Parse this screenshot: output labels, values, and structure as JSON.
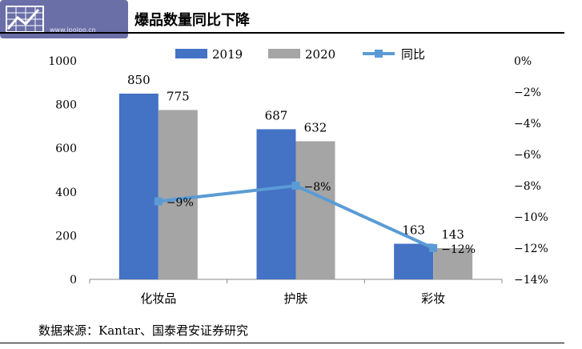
{
  "header": {
    "watermark_text": "",
    "watermark_url": "www.ipoipo.cn",
    "title": "爆品数量同比下降"
  },
  "footer": {
    "source": "数据来源：Kantar、国泰君安证券研究"
  },
  "colors": {
    "series_2019": "#4472c4",
    "series_2020": "#a5a5a5",
    "series_yoy": "#5b9bd5"
  },
  "chart_data": {
    "type": "bar",
    "categories": [
      "化妆品",
      "护肤",
      "彩妆"
    ],
    "series": [
      {
        "name": "2019",
        "values": [
          850,
          687,
          163
        ],
        "axis": "left"
      },
      {
        "name": "2020",
        "values": [
          775,
          632,
          143
        ],
        "axis": "left"
      },
      {
        "name": "同比",
        "values": [
          -9,
          -8,
          -12
        ],
        "axis": "right",
        "kind": "line",
        "labels": [
          "-9%",
          "-8%",
          "-12%"
        ]
      }
    ],
    "ylim": [
      0,
      1000
    ],
    "y_ticks": [
      "0",
      "200",
      "400",
      "600",
      "800",
      "1000"
    ],
    "y2lim": [
      -14,
      0
    ],
    "y2_ticks": [
      "0%",
      "-2%",
      "-4%",
      "-6%",
      "-8%",
      "-10%",
      "-12%",
      "-14%"
    ],
    "legend": [
      "2019",
      "2020",
      "同比"
    ],
    "legend_position": "top",
    "grid": false
  }
}
